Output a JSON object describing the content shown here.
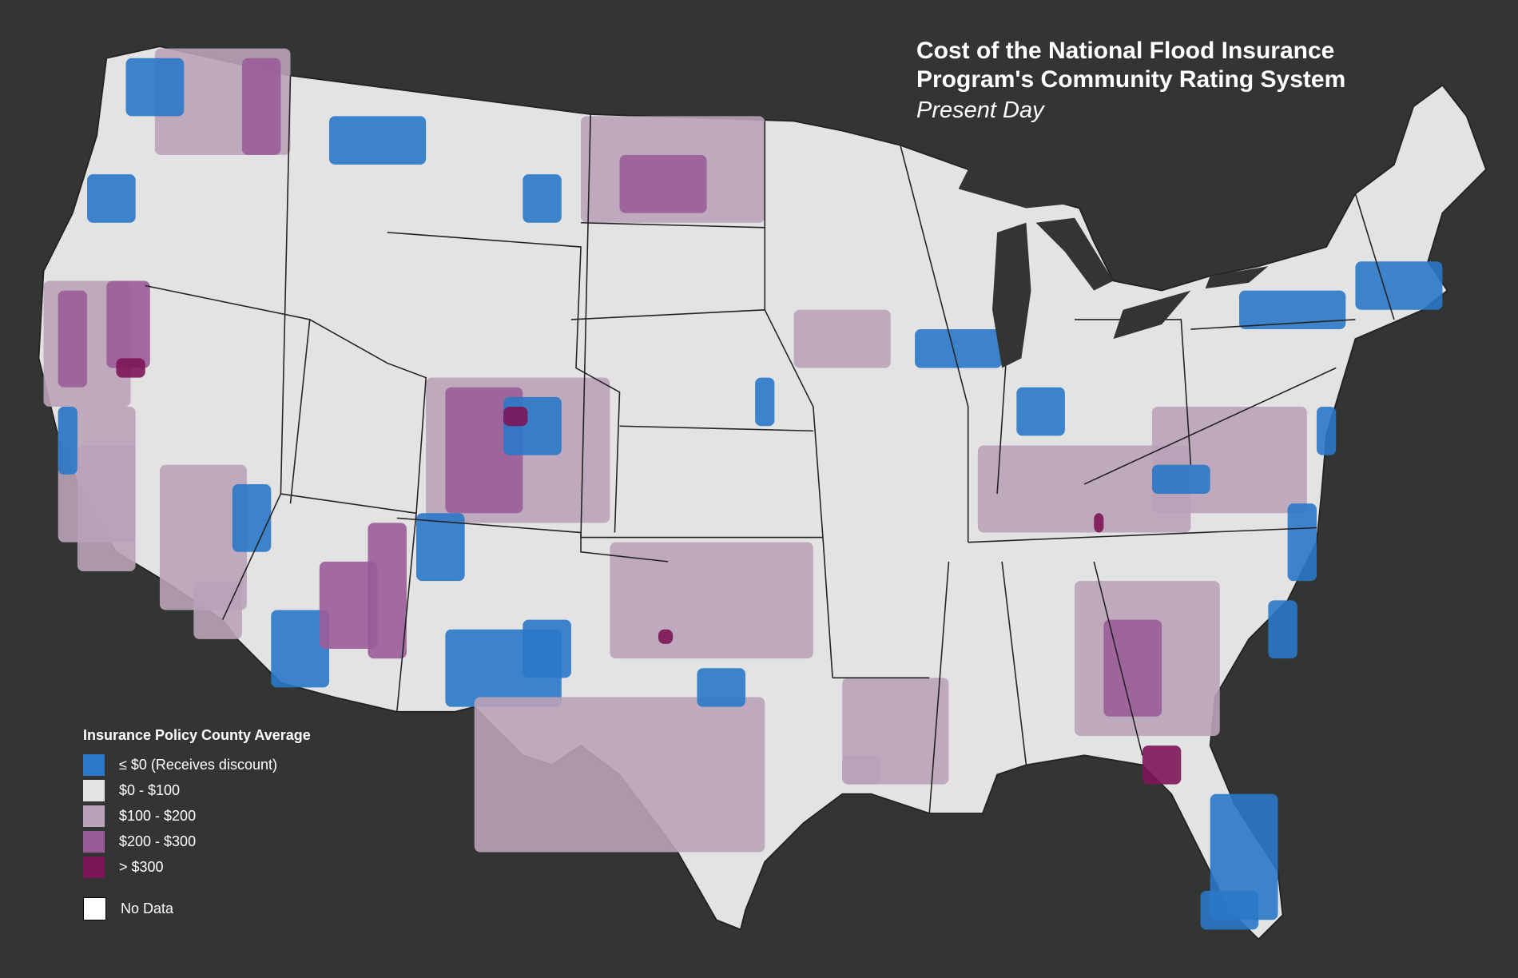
{
  "title_line1": "Cost of the National Flood Insurance",
  "title_line2": "Program's Community Rating System",
  "subtitle": "Present Day",
  "legend": {
    "title": "Insurance Policy County Average",
    "items": [
      {
        "label": "≤ $0 (Receives discount)",
        "color": "#2a78c8"
      },
      {
        "label": "$0 - $100",
        "color": "#e3e3e3"
      },
      {
        "label": "$100 - $200",
        "color": "#b9a2b8"
      },
      {
        "label": "$200 - $300",
        "color": "#9a5c98"
      },
      {
        "label": "> $300",
        "color": "#7c1556"
      }
    ],
    "no_data": {
      "label": "No Data",
      "color": "#ffffff"
    }
  },
  "colors": {
    "background": "#333533",
    "borders": "#333333"
  }
}
